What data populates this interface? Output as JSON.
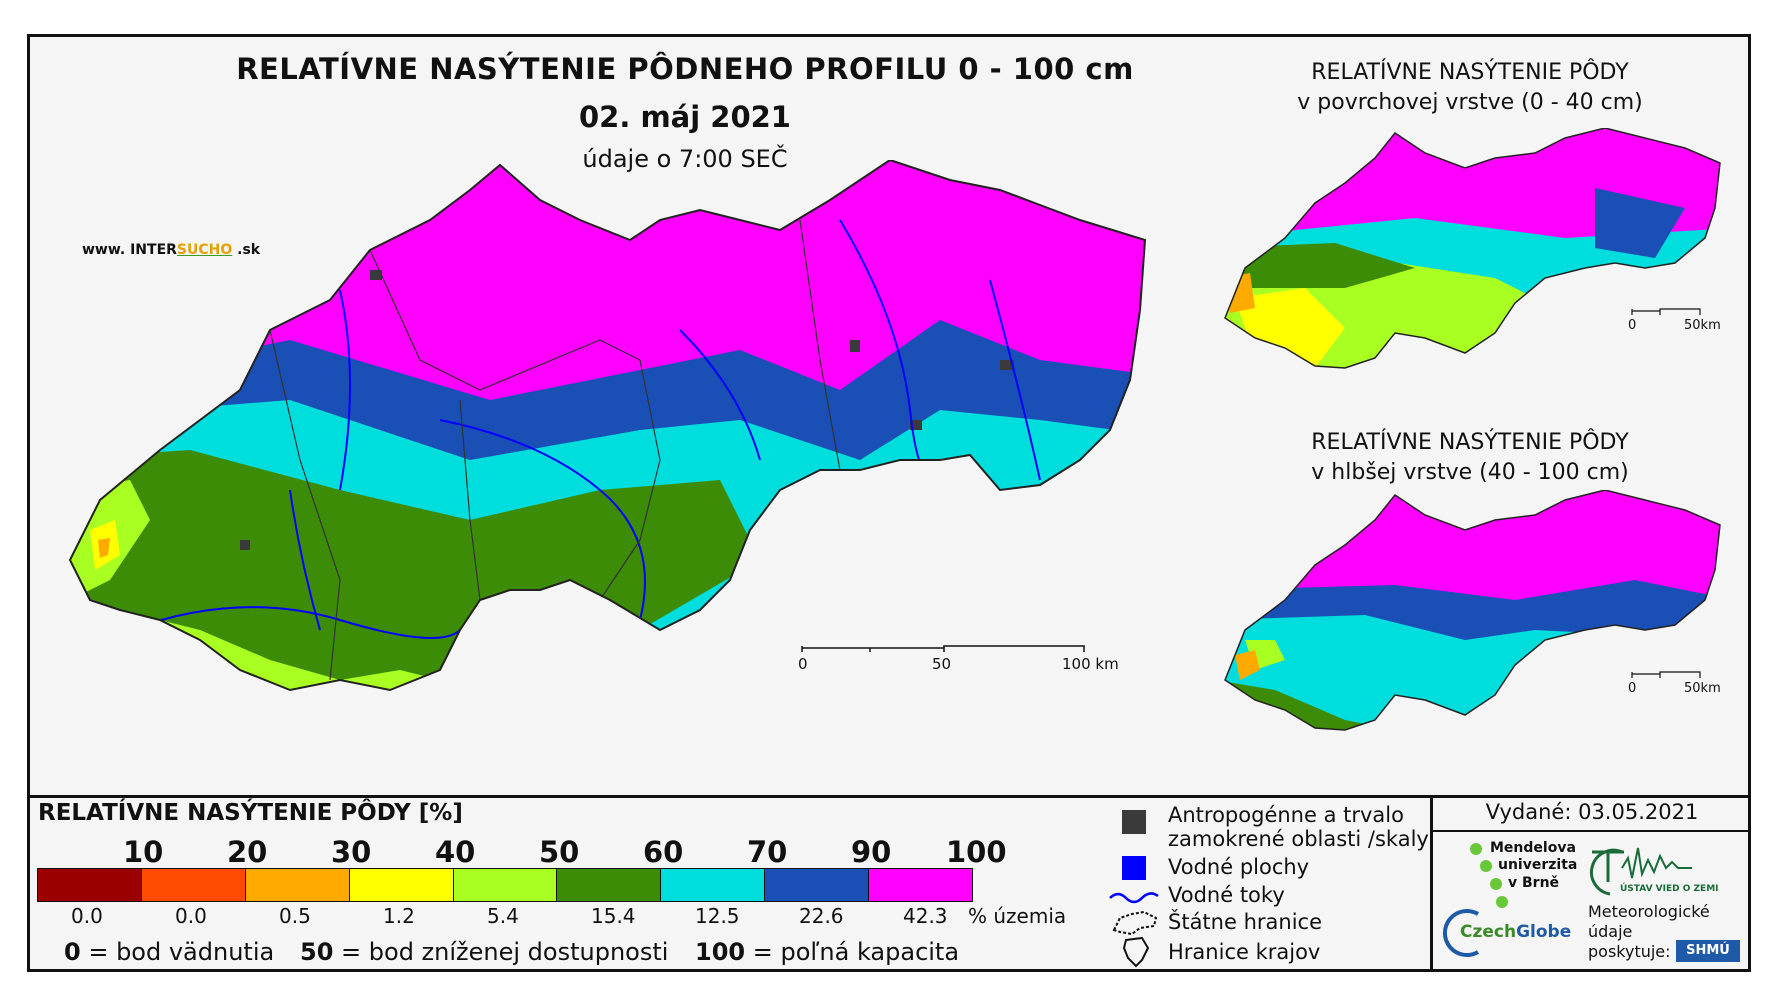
{
  "header": {
    "title": "RELATÍVNE NASÝTENIE PÔDNEHO PROFILU 0 - 100 cm",
    "date": "02. máj 2021",
    "time": "údaje o 7:00 SEČ",
    "website_prefix": "www. INTER",
    "website_brand": "SUCHO",
    "website_suffix": " .sk"
  },
  "inset_top": {
    "title_line1": "RELATÍVNE NASÝTENIE PÔDY",
    "title_line2": "v povrchovej vrstve (0 - 40 cm)",
    "scale_0": "0",
    "scale_end": "50km"
  },
  "inset_bottom": {
    "title_line1": "RELATÍVNE NASÝTENIE PÔDY",
    "title_line2": "v hlbšej vrstve (40 - 100 cm)",
    "scale_0": "0",
    "scale_end": "50km"
  },
  "main_scalebar": {
    "label_0": "0",
    "label_50": "50",
    "label_100": "100 km"
  },
  "legend": {
    "title": "RELATÍVNE NASÝTENIE PÔDY [%]",
    "thresholds": [
      "10",
      "20",
      "30",
      "40",
      "50",
      "60",
      "70",
      "90",
      "100"
    ],
    "classes": [
      {
        "color": "#9b0000",
        "percent": "0.0"
      },
      {
        "color": "#ff4a00",
        "percent": "0.0"
      },
      {
        "color": "#ffaa00",
        "percent": "0.5"
      },
      {
        "color": "#ffff00",
        "percent": "1.2"
      },
      {
        "color": "#aaff22",
        "percent": "5.4"
      },
      {
        "color": "#3d8c08",
        "percent": "15.4"
      },
      {
        "color": "#00dddd",
        "percent": "12.5"
      },
      {
        "color": "#1a4fb5",
        "percent": "22.6"
      },
      {
        "color": "#ff00ff",
        "percent": "42.3"
      }
    ],
    "percent_unit": "% územia",
    "note_0_num": "0",
    "note_0_text": " = bod vädnutia",
    "note_50_num": "50",
    "note_50_text": " = bod zníženej dostupnosti",
    "note_100_num": "100",
    "note_100_text": " = poľná kapacita"
  },
  "map_legend": {
    "anthropogenic_line1": "Antropogénne a trvalo",
    "anthropogenic_line2": "zamokrené oblasti /skaly",
    "water_areas": "Vodné plochy",
    "rivers": "Vodné toky",
    "state_borders": "Štátne hranice",
    "region_borders": "Hranice krajov"
  },
  "credits": {
    "issued": "Vydané: 03.05.2021",
    "mendel_1": "Mendelova",
    "mendel_2": "univerzita",
    "mendel_3": "v Brně",
    "czechglobe_1": "Czech",
    "czechglobe_2": "Globe",
    "ustav": "ÚSTAV VIED O ZEMI",
    "meteo_1": "Meteorologické",
    "meteo_2": "údaje",
    "meteo_3": "poskytuje:",
    "shmu": "SHMÚ"
  },
  "colors": {
    "magenta": "#ff00ff",
    "blue": "#1a4fb5",
    "cyan": "#00dddd",
    "dark_green": "#3d8c08",
    "light_green": "#aaff22",
    "yellow": "#ffff00",
    "orange": "#ffaa00",
    "anthropogenic": "#3a3a3a",
    "water": "#0000ff"
  }
}
